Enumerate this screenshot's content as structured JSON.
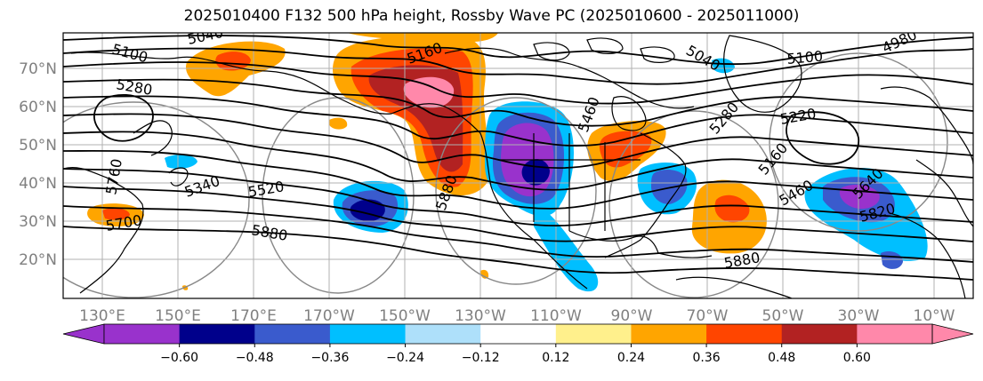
{
  "title": "2025010400 F132 500 hPa height, Rossby Wave PC (2025010600 - 2025011000)",
  "map": {
    "lon_labels": [
      "130°E",
      "150°E",
      "170°E",
      "170°W",
      "150°W",
      "130°W",
      "110°W",
      "90°W",
      "70°W",
      "50°W",
      "30°W",
      "10°W"
    ],
    "lat_labels": [
      "70°N",
      "60°N",
      "50°N",
      "40°N",
      "30°N",
      "20°N"
    ],
    "contour_labels": [
      "5040",
      "5100",
      "5280",
      "5160",
      "5040",
      "4980",
      "5100",
      "5220",
      "5280",
      "5160",
      "5340",
      "5520",
      "5460",
      "5640",
      "5700",
      "5880",
      "5880",
      "5820",
      "5760",
      "5880",
      "5460"
    ]
  },
  "colorbar": {
    "colors": [
      "#9932cc",
      "#00008b",
      "#3a5bcd",
      "#00bfff",
      "#aee0fa",
      "#ffffff",
      "#fff08c",
      "#ffa500",
      "#ff4500",
      "#b22222",
      "#ff88aa"
    ],
    "under_color": "#9932cc",
    "over_color": "#ff88aa",
    "tick_labels": [
      "−0.60",
      "−0.48",
      "−0.36",
      "−0.24",
      "−0.12",
      "0.12",
      "0.24",
      "0.36",
      "0.48",
      "0.60"
    ]
  }
}
